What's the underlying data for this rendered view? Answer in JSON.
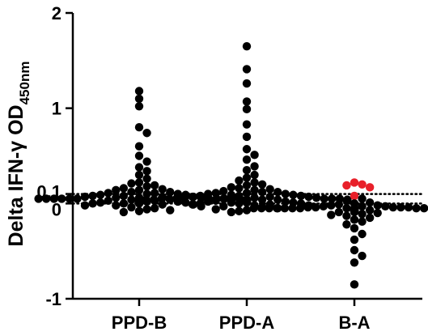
{
  "chart_data": {
    "type": "scatter",
    "title": "",
    "ylabel": {
      "main": "Delta IFN-γ OD",
      "subscript": "450nm"
    },
    "xlabel": "",
    "categories": [
      "PPD-B",
      "PPD-A",
      "B-A"
    ],
    "ylim": [
      -1,
      2
    ],
    "y_ticks": [
      {
        "value": 2,
        "label": "2"
      },
      {
        "value": 1,
        "label": "1"
      },
      {
        "value": 0.1,
        "label": "0.1"
      },
      {
        "value": 0,
        "label": "0"
      },
      {
        "value": -1,
        "label": "-1"
      }
    ],
    "reference_lines": [
      0.1,
      0
    ],
    "grid": false,
    "highlight_color": "#e8202a",
    "point_color": "#000000",
    "series": [
      {
        "category": "PPD-B",
        "points": [
          {
            "y": 1.18
          },
          {
            "y": 1.1
          },
          {
            "y": 1.02
          },
          {
            "y": 0.8
          },
          {
            "y": 0.74
          },
          {
            "y": 0.6
          },
          {
            "y": 0.5
          },
          {
            "y": 0.44
          },
          {
            "y": 0.38
          },
          {
            "y": 0.34
          },
          {
            "y": 0.3
          },
          {
            "y": 0.26
          },
          {
            "y": 0.22
          },
          {
            "y": 0.21
          },
          {
            "y": 0.19
          },
          {
            "y": 0.18
          },
          {
            "y": 0.16
          },
          {
            "y": 0.15
          },
          {
            "y": 0.14
          },
          {
            "y": 0.14
          },
          {
            "y": 0.12
          },
          {
            "y": 0.12
          },
          {
            "y": 0.11
          },
          {
            "y": 0.11
          },
          {
            "y": 0.1
          },
          {
            "y": 0.1
          },
          {
            "y": 0.09
          },
          {
            "y": 0.09
          },
          {
            "y": 0.08
          },
          {
            "y": 0.08
          },
          {
            "y": 0.07
          },
          {
            "y": 0.07
          },
          {
            "y": 0.07
          },
          {
            "y": 0.06
          },
          {
            "y": 0.06
          },
          {
            "y": 0.06
          },
          {
            "y": 0.05
          },
          {
            "y": 0.05
          },
          {
            "y": 0.05
          },
          {
            "y": 0.05
          },
          {
            "y": 0.05
          },
          {
            "y": 0.05
          },
          {
            "y": 0.05
          },
          {
            "y": 0.05
          },
          {
            "y": 0.05
          },
          {
            "y": 0.05
          },
          {
            "y": 0.05
          },
          {
            "y": 0.05
          },
          {
            "y": 0.04
          },
          {
            "y": 0.04
          },
          {
            "y": 0.04
          },
          {
            "y": 0.04
          },
          {
            "y": 0.04
          },
          {
            "y": 0.04
          },
          {
            "y": 0.04
          },
          {
            "y": 0.04
          },
          {
            "y": 0.04
          },
          {
            "y": 0.04
          },
          {
            "y": 0.04
          },
          {
            "y": 0.04
          },
          {
            "y": 0.03
          },
          {
            "y": 0.03
          },
          {
            "y": 0.03
          },
          {
            "y": 0.03
          },
          {
            "y": 0.03
          },
          {
            "y": 0.03
          },
          {
            "y": 0.03
          },
          {
            "y": 0.03
          },
          {
            "y": 0.03
          },
          {
            "y": 0.03
          },
          {
            "y": 0.02
          },
          {
            "y": 0.02
          },
          {
            "y": 0.02
          },
          {
            "y": 0.02
          },
          {
            "y": 0.02
          },
          {
            "y": 0.02
          },
          {
            "y": 0.02
          },
          {
            "y": 0.02
          },
          {
            "y": 0.02
          },
          {
            "y": 0.01
          },
          {
            "y": 0.01
          },
          {
            "y": 0.01
          },
          {
            "y": 0.01
          },
          {
            "y": 0.0
          },
          {
            "y": 0.0
          },
          {
            "y": 0.0
          },
          {
            "y": -0.01
          },
          {
            "y": -0.01
          },
          {
            "y": -0.02
          },
          {
            "y": -0.02
          },
          {
            "y": -0.03
          },
          {
            "y": -0.04
          },
          {
            "y": -0.05
          },
          {
            "y": -0.06
          },
          {
            "y": -0.07
          },
          {
            "y": -0.08
          },
          {
            "y": -0.09
          }
        ]
      },
      {
        "category": "PPD-A",
        "points": [
          {
            "y": 1.65
          },
          {
            "y": 1.41
          },
          {
            "y": 1.26
          },
          {
            "y": 1.07
          },
          {
            "y": 0.99
          },
          {
            "y": 0.83
          },
          {
            "y": 0.7
          },
          {
            "y": 0.57
          },
          {
            "y": 0.51
          },
          {
            "y": 0.46
          },
          {
            "y": 0.39
          },
          {
            "y": 0.35
          },
          {
            "y": 0.3
          },
          {
            "y": 0.27
          },
          {
            "y": 0.24
          },
          {
            "y": 0.22
          },
          {
            "y": 0.2
          },
          {
            "y": 0.19
          },
          {
            "y": 0.17
          },
          {
            "y": 0.16
          },
          {
            "y": 0.15
          },
          {
            "y": 0.14
          },
          {
            "y": 0.13
          },
          {
            "y": 0.12
          },
          {
            "y": 0.12
          },
          {
            "y": 0.11
          },
          {
            "y": 0.11
          },
          {
            "y": 0.1
          },
          {
            "y": 0.1
          },
          {
            "y": 0.09
          },
          {
            "y": 0.09
          },
          {
            "y": 0.08
          },
          {
            "y": 0.08
          },
          {
            "y": 0.08
          },
          {
            "y": 0.07
          },
          {
            "y": 0.07
          },
          {
            "y": 0.07
          },
          {
            "y": 0.06
          },
          {
            "y": 0.06
          },
          {
            "y": 0.06
          },
          {
            "y": 0.06
          },
          {
            "y": 0.05
          },
          {
            "y": 0.05
          },
          {
            "y": 0.05
          },
          {
            "y": 0.05
          },
          {
            "y": 0.05
          },
          {
            "y": 0.05
          },
          {
            "y": 0.04
          },
          {
            "y": 0.04
          },
          {
            "y": 0.04
          },
          {
            "y": 0.04
          },
          {
            "y": 0.04
          },
          {
            "y": 0.04
          },
          {
            "y": 0.04
          },
          {
            "y": 0.04
          },
          {
            "y": 0.03
          },
          {
            "y": 0.03
          },
          {
            "y": 0.03
          },
          {
            "y": 0.03
          },
          {
            "y": 0.03
          },
          {
            "y": 0.03
          },
          {
            "y": 0.03
          },
          {
            "y": 0.03
          },
          {
            "y": 0.02
          },
          {
            "y": 0.02
          },
          {
            "y": 0.02
          },
          {
            "y": 0.02
          },
          {
            "y": 0.02
          },
          {
            "y": 0.02
          },
          {
            "y": 0.02
          },
          {
            "y": 0.02
          },
          {
            "y": 0.01
          },
          {
            "y": 0.01
          },
          {
            "y": 0.01
          },
          {
            "y": 0.01
          },
          {
            "y": 0.0
          },
          {
            "y": 0.0
          },
          {
            "y": 0.0
          },
          {
            "y": -0.01
          },
          {
            "y": -0.01
          },
          {
            "y": -0.02
          },
          {
            "y": -0.02
          },
          {
            "y": -0.03
          },
          {
            "y": -0.04
          },
          {
            "y": -0.05
          },
          {
            "y": -0.06
          },
          {
            "y": -0.07
          },
          {
            "y": -0.08
          },
          {
            "y": -0.09
          }
        ]
      },
      {
        "category": "B-A",
        "points": [
          {
            "y": 0.22,
            "highlight": true
          },
          {
            "y": 0.2,
            "highlight": true
          },
          {
            "y": 0.19,
            "highlight": true
          },
          {
            "y": 0.17,
            "highlight": true
          },
          {
            "y": 0.08,
            "highlight": true
          },
          {
            "y": 0.05
          },
          {
            "y": 0.03
          },
          {
            "y": 0.01
          },
          {
            "y": 0.0
          },
          {
            "y": -0.01
          },
          {
            "y": -0.02
          },
          {
            "y": -0.02
          },
          {
            "y": -0.03
          },
          {
            "y": -0.03
          },
          {
            "y": -0.03
          },
          {
            "y": -0.04
          },
          {
            "y": -0.04
          },
          {
            "y": -0.04
          },
          {
            "y": -0.04
          },
          {
            "y": -0.04
          },
          {
            "y": -0.05
          },
          {
            "y": -0.05
          },
          {
            "y": -0.05
          },
          {
            "y": -0.05
          },
          {
            "y": -0.05
          },
          {
            "y": -0.05
          },
          {
            "y": -0.05
          },
          {
            "y": -0.05
          },
          {
            "y": -0.05
          },
          {
            "y": -0.05
          },
          {
            "y": -0.05
          },
          {
            "y": -0.05
          },
          {
            "y": -0.05
          },
          {
            "y": -0.05
          },
          {
            "y": -0.05
          },
          {
            "y": -0.06
          },
          {
            "y": -0.06
          },
          {
            "y": -0.06
          },
          {
            "y": -0.06
          },
          {
            "y": -0.06
          },
          {
            "y": -0.06
          },
          {
            "y": -0.06
          },
          {
            "y": -0.06
          },
          {
            "y": -0.06
          },
          {
            "y": -0.06
          },
          {
            "y": -0.06
          },
          {
            "y": -0.06
          },
          {
            "y": -0.06
          },
          {
            "y": -0.06
          },
          {
            "y": -0.06
          },
          {
            "y": -0.07
          },
          {
            "y": -0.07
          },
          {
            "y": -0.07
          },
          {
            "y": -0.07
          },
          {
            "y": -0.07
          },
          {
            "y": -0.07
          },
          {
            "y": -0.07
          },
          {
            "y": -0.07
          },
          {
            "y": -0.08
          },
          {
            "y": -0.08
          },
          {
            "y": -0.08
          },
          {
            "y": -0.08
          },
          {
            "y": -0.09
          },
          {
            "y": -0.09
          },
          {
            "y": -0.1
          },
          {
            "y": -0.11
          },
          {
            "y": -0.12
          },
          {
            "y": -0.13
          },
          {
            "y": -0.15
          },
          {
            "y": -0.17
          },
          {
            "y": -0.19
          },
          {
            "y": -0.22
          },
          {
            "y": -0.26
          },
          {
            "y": -0.32
          },
          {
            "y": -0.38
          },
          {
            "y": -0.49
          },
          {
            "y": -0.55
          },
          {
            "y": -0.62
          },
          {
            "y": -0.85
          }
        ]
      }
    ]
  }
}
